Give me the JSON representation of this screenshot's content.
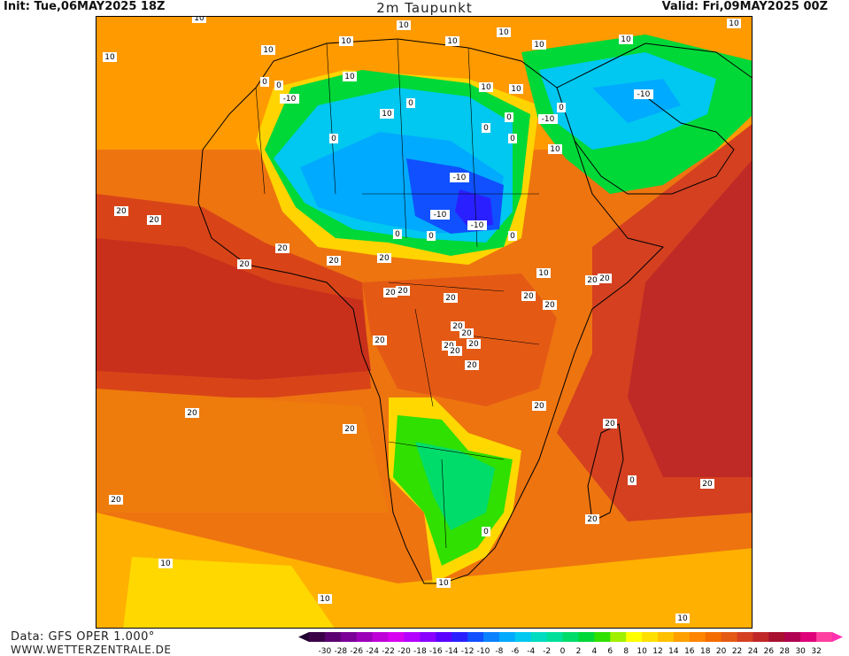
{
  "header": {
    "init": "Init: Tue,06MAY2025 18Z",
    "title": "2m Taupunkt",
    "valid": "Valid: Fri,09MAY2025 00Z"
  },
  "footer": {
    "source": "Data: GFS OPER 1.000°",
    "website": "WWW.WETTERZENTRALE.DE"
  },
  "legend": {
    "labels": [
      "-30",
      "-28",
      "-26",
      "-24",
      "-22",
      "-20",
      "-18",
      "-16",
      "-14",
      "-12",
      "-10",
      "-8",
      "-6",
      "-4",
      "-2",
      "0",
      "2",
      "4",
      "6",
      "8",
      "10",
      "12",
      "14",
      "16",
      "18",
      "20",
      "22",
      "24",
      "26",
      "28",
      "30",
      "32"
    ],
    "colors": [
      "#3a0048",
      "#5a0070",
      "#7a0098",
      "#9c00b8",
      "#bf00d8",
      "#d800f0",
      "#b400ff",
      "#8a00ff",
      "#5a00ff",
      "#2a20ff",
      "#1050ff",
      "#0a82ff",
      "#00aaff",
      "#00c8f0",
      "#00dcc0",
      "#00e09a",
      "#00dc6a",
      "#00d838",
      "#30e000",
      "#a0f000",
      "#ffff00",
      "#ffdf00",
      "#ffc000",
      "#ffa000",
      "#ff8400",
      "#f46c00",
      "#e45a14",
      "#d44020",
      "#c02828",
      "#a81030",
      "#b00050",
      "#e0007a",
      "#ff40a0"
    ],
    "low_arrow_color": "#200030",
    "high_arrow_color": "#ff30b0"
  },
  "map_labels": [
    "10",
    "10",
    "10",
    "10",
    "10",
    "10",
    "10",
    "10",
    "10",
    "10",
    "10",
    "10",
    "10",
    "10",
    "10",
    "10",
    "10",
    "10",
    "10",
    "10",
    "0",
    "0",
    "0",
    "0",
    "0",
    "0",
    "0",
    "0",
    "0",
    "0",
    "0",
    "0",
    "0",
    "-10",
    "-10",
    "-10",
    "-10",
    "-10",
    "-10",
    "20",
    "20",
    "20",
    "20",
    "20",
    "20",
    "20",
    "20",
    "20",
    "20",
    "20",
    "20",
    "20",
    "20",
    "20",
    "20",
    "20",
    "20",
    "20",
    "20",
    "20",
    "20",
    "20",
    "20",
    "20",
    "20",
    "20"
  ],
  "colors": {
    "frame": "#000000",
    "text": "#111111"
  }
}
